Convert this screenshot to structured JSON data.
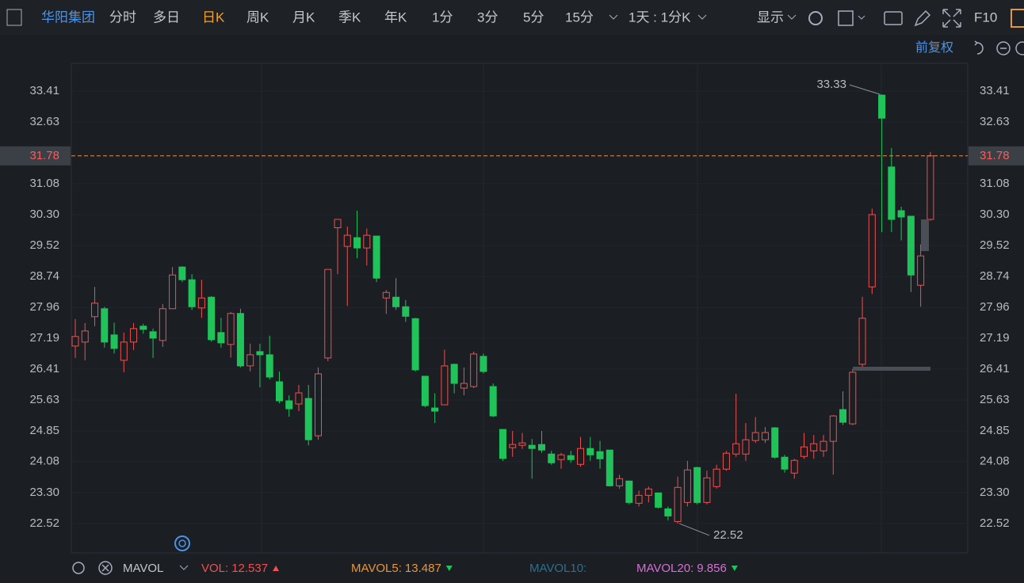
{
  "toolbar": {
    "stock_name": "华阳集团",
    "periods": [
      "分时",
      "多日",
      "日K",
      "周K",
      "月K",
      "季K",
      "年K",
      "1分",
      "3分",
      "5分",
      "15分"
    ],
    "active_period": "日K",
    "interval": "1天 : 1分K",
    "display": "显示",
    "f10": "F10"
  },
  "chart_data": {
    "type": "candlestick",
    "adjust": "前复权",
    "ylim": [
      21.78,
      34.11
    ],
    "yticks": [
      {
        "value": 22.52,
        "label": "22.52"
      },
      {
        "value": 23.3,
        "label": "23.30"
      },
      24.08,
      24.85,
      25.63,
      26.41,
      27.19,
      27.96,
      28.74,
      29.52,
      {
        "value": 30.3,
        "label": "30.30"
      },
      31.08,
      32.63,
      33.41
    ],
    "grid": true,
    "colors": {
      "up": "#f0504f",
      "down": "#20c35a"
    },
    "open": [
      26.99,
      27.09,
      27.73,
      27.93,
      27.27,
      26.63,
      27.09,
      27.49,
      27.35,
      27.13,
      27.93,
      28.98,
      28.66,
      27.95,
      28.22,
      27.33,
      27.03,
      27.81,
      26.49,
      26.85,
      26.77,
      26.09,
      25.61,
      25.53,
      25.67,
      24.73,
      26.69,
      29.97,
      29.5,
      29.72,
      29.46,
      29.76,
      28.2,
      28.22,
      27.98,
      27.68,
      26.23,
      25.43,
      25.51,
      26.53,
      25.93,
      25.97,
      26.73,
      25.97,
      24.89,
      24.43,
      24.49,
      24.49,
      24.51,
      24.27,
      24.13,
      24.23,
      24.01,
      24.41,
      24.33,
      24.37,
      23.47,
      23.59,
      23.03,
      23.23,
      23.29,
      22.89,
      22.57,
      23.05,
      23.93,
      23.05,
      23.45,
      23.89,
      24.27,
      24.27,
      24.61,
      24.63,
      24.93,
      24.19,
      23.79,
      24.21,
      24.35,
      24.35,
      24.59,
      25.39,
      25.03,
      26.53,
      28.48,
      33.31,
      31.5,
      30.4,
      30.26,
      28.52,
      30.18
    ],
    "high": [
      27.67,
      27.57,
      28.48,
      27.98,
      27.58,
      27.33,
      27.57,
      27.55,
      27.43,
      28.05,
      28.98,
      29.0,
      28.8,
      28.66,
      28.25,
      27.7,
      27.85,
      27.93,
      27.05,
      27.05,
      27.25,
      26.35,
      25.75,
      26.01,
      26.01,
      26.45,
      28.92,
      30.18,
      30.0,
      30.4,
      29.95,
      29.76,
      28.4,
      28.7,
      28.15,
      27.7,
      26.23,
      25.8,
      26.9,
      26.55,
      26.45,
      26.85,
      26.8,
      26.05,
      24.89,
      24.85,
      24.8,
      24.65,
      24.85,
      24.35,
      24.3,
      24.35,
      24.7,
      24.7,
      24.6,
      24.37,
      23.75,
      23.6,
      23.35,
      23.45,
      23.3,
      22.95,
      23.7,
      24.1,
      23.95,
      23.85,
      24.0,
      24.35,
      25.79,
      25.05,
      25.2,
      24.95,
      24.95,
      24.25,
      24.15,
      24.8,
      24.75,
      24.75,
      25.25,
      25.85,
      26.41,
      28.23,
      30.45,
      33.33,
      31.98,
      30.5,
      30.26,
      29.55,
      31.88
    ],
    "low": [
      26.69,
      26.63,
      27.49,
      26.95,
      26.8,
      26.33,
      26.89,
      27.3,
      26.69,
      26.97,
      27.93,
      28.6,
      27.9,
      27.7,
      27.1,
      26.95,
      26.7,
      26.45,
      26.35,
      25.95,
      26.15,
      25.55,
      25.21,
      25.35,
      24.49,
      24.63,
      26.61,
      28.8,
      28.0,
      29.2,
      29.02,
      28.6,
      27.8,
      27.9,
      27.6,
      26.35,
      25.45,
      25.05,
      25.5,
      25.8,
      25.75,
      25.93,
      26.3,
      25.2,
      24.1,
      24.2,
      24.4,
      23.65,
      24.3,
      24.0,
      23.9,
      24.05,
      23.95,
      24.1,
      23.9,
      23.45,
      23.4,
      23.0,
      22.95,
      23.05,
      22.9,
      22.6,
      22.52,
      22.95,
      23.0,
      23.0,
      23.4,
      23.85,
      24.2,
      24.1,
      24.55,
      24.55,
      24.15,
      23.8,
      23.65,
      24.15,
      24.15,
      24.2,
      23.75,
      25.0,
      25.0,
      26.45,
      28.3,
      29.86,
      29.86,
      29.65,
      28.35,
      27.98,
      30.15
    ],
    "close": [
      27.23,
      27.37,
      28.07,
      27.09,
      26.93,
      27.09,
      27.43,
      27.41,
      27.19,
      27.93,
      28.78,
      28.66,
      27.98,
      28.2,
      27.15,
      27.07,
      27.81,
      26.49,
      26.77,
      26.77,
      26.21,
      25.61,
      25.41,
      25.81,
      24.63,
      26.29,
      28.92,
      30.18,
      29.78,
      29.46,
      29.78,
      28.7,
      28.34,
      27.98,
      27.74,
      26.39,
      25.49,
      25.35,
      26.49,
      26.05,
      26.05,
      26.79,
      26.35,
      25.23,
      24.16,
      24.51,
      24.55,
      24.41,
      24.37,
      24.05,
      24.25,
      24.13,
      24.41,
      24.25,
      24.15,
      23.47,
      23.65,
      23.05,
      23.23,
      23.39,
      22.93,
      22.71,
      23.43,
      23.87,
      23.05,
      23.67,
      23.89,
      24.29,
      24.53,
      24.63,
      24.81,
      24.81,
      24.19,
      23.89,
      24.11,
      24.45,
      24.53,
      24.59,
      25.23,
      25.07,
      26.33,
      27.69,
      30.3,
      32.73,
      30.18,
      30.24,
      28.78,
      29.26,
      31.78
    ],
    "current_price": 31.78,
    "high_annotation": 33.33,
    "low_annotation": 22.52
  },
  "indicator": {
    "name": "MAVOL",
    "items": [
      {
        "label": "VOL:",
        "value": 12.537,
        "color": "#f0504f",
        "arrow": "up"
      },
      {
        "label": "MAVOL5:",
        "value": 13.487,
        "color": "#e8963a",
        "arrow": "down"
      },
      {
        "label": "MAVOL10:",
        "color": "#2f6f8a"
      },
      {
        "label": "MAVOL20:",
        "value": 9.856,
        "color": "#d470d4",
        "arrow": "down"
      }
    ]
  }
}
